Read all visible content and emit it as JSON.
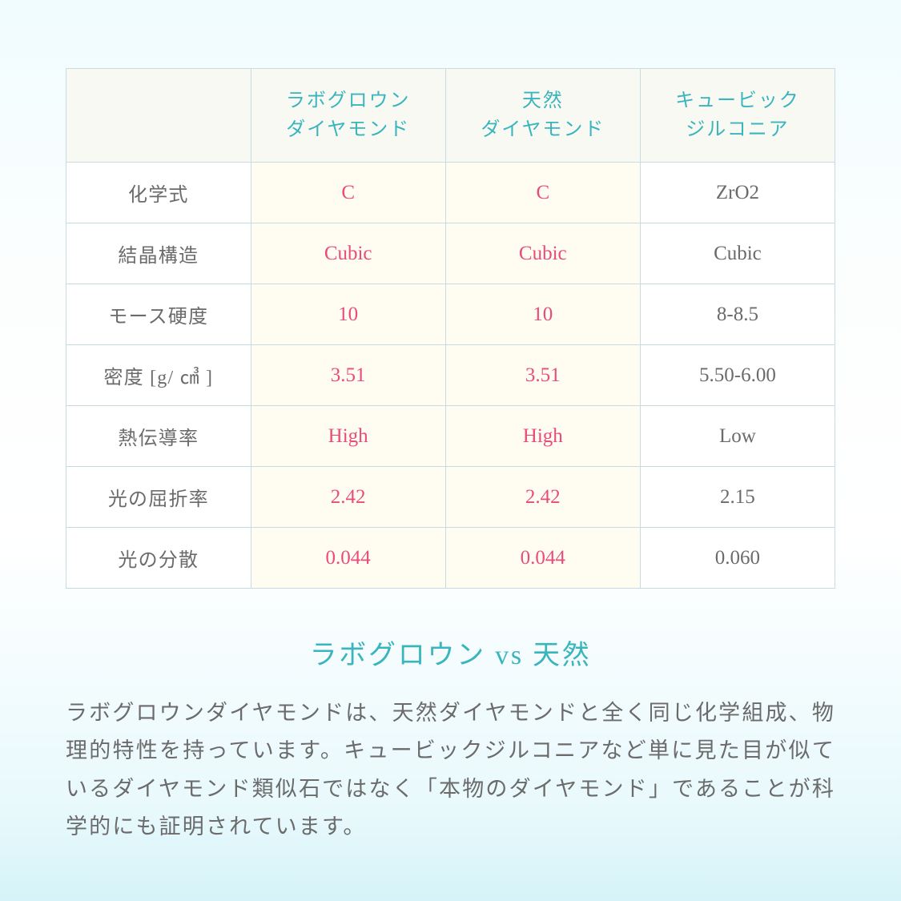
{
  "table": {
    "headers": {
      "col1_line1": "ラボグロウン",
      "col1_line2": "ダイヤモンド",
      "col2_line1": "天然",
      "col2_line2": "ダイヤモンド",
      "col3_line1": "キュービック",
      "col3_line2": "ジルコニア"
    },
    "rows": [
      {
        "label": "化学式",
        "lab": "C",
        "natural": "C",
        "cz": "ZrO2"
      },
      {
        "label": "結晶構造",
        "lab": "Cubic",
        "natural": "Cubic",
        "cz": "Cubic"
      },
      {
        "label": "モース硬度",
        "lab": "10",
        "natural": "10",
        "cz": "8-8.5"
      },
      {
        "label": "密度 [g/ ㎤ ]",
        "lab": "3.51",
        "natural": "3.51",
        "cz": "5.50-6.00"
      },
      {
        "label": "熱伝導率",
        "lab": "High",
        "natural": "High",
        "cz": "Low"
      },
      {
        "label": "光の屈折率",
        "lab": "2.42",
        "natural": "2.42",
        "cz": "2.15"
      },
      {
        "label": "光の分散",
        "lab": "0.044",
        "natural": "0.044",
        "cz": "0.060"
      }
    ]
  },
  "section_title": "ラボグロウン vs 天然",
  "description": "ラボグロウンダイヤモンドは、天然ダイヤモンドと全く同じ化学組成、物理的特性を持っています。キュービックジルコニアなど単に見た目が似ているダイヤモンド類似石ではなく「本物のダイヤモンド」であることが科学的にも証明されています。",
  "styling": {
    "accent_color": "#3ab5bd",
    "highlight_color": "#e84c7b",
    "text_color": "#6b6b6b",
    "border_color": "#c8dbe0",
    "highlight_bg": "#fffdf2",
    "header_bg": "#f9f9f4",
    "background_gradient": [
      "#f0fcff",
      "#fcfefe",
      "#ffffff",
      "#e8f9fc",
      "#d5f3f8"
    ],
    "title_fontsize": 34,
    "body_fontsize": 27,
    "cell_fontsize": 25,
    "header_fontsize": 24
  }
}
